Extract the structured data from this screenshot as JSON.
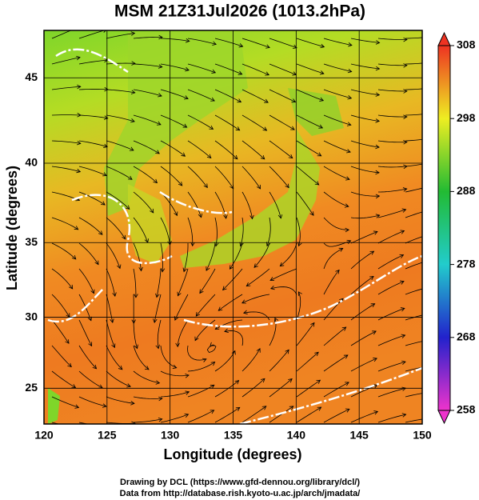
{
  "title": "MSM 21Z31Jul2026 (1013.2hPa)",
  "map": {
    "xlabel": "Longitude (degrees)",
    "ylabel": "Latitude  (degrees)",
    "projection": "mercator",
    "xlim": [
      120,
      150
    ],
    "ylim": [
      22.4,
      47.6
    ],
    "xticks": [
      120,
      125,
      130,
      135,
      140,
      145,
      150
    ],
    "yticks": [
      25,
      30,
      35,
      40,
      45
    ],
    "grid": true
  },
  "colorbar": {
    "lim": [
      258,
      308
    ],
    "ticks": [
      258,
      268,
      278,
      288,
      298,
      308
    ]
  },
  "credits": [
    "Drawing by DCL (https://www.gfd-dennou.org/library/dcl/)",
    "Data from http://database.rish.kyoto-u.ac.jp/arch/jmadata/"
  ]
}
